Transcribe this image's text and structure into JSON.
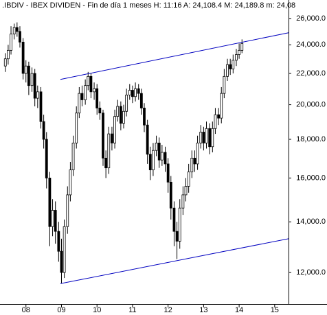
{
  "chart_data": {
    "type": "candlestick",
    "title": ".IBDIV - IBEX DIVIDEN - Fin de día 1 meses H: 11:16 A: 24,108.4 M: 24,189.8 m: 24,08",
    "log_scale": true,
    "grid": false,
    "color": "#000000",
    "x": [
      2007.42,
      2007.5,
      2007.58,
      2007.67,
      2007.75,
      2007.83,
      2007.92,
      2008.0,
      2008.08,
      2008.17,
      2008.25,
      2008.33,
      2008.42,
      2008.5,
      2008.58,
      2008.67,
      2008.75,
      2008.83,
      2008.92,
      2009.0,
      2009.08,
      2009.17,
      2009.25,
      2009.33,
      2009.42,
      2009.5,
      2009.58,
      2009.67,
      2009.75,
      2009.83,
      2009.92,
      2010.0,
      2010.08,
      2010.17,
      2010.25,
      2010.33,
      2010.42,
      2010.5,
      2010.58,
      2010.67,
      2010.75,
      2010.83,
      2010.92,
      2011.0,
      2011.08,
      2011.17,
      2011.25,
      2011.33,
      2011.42,
      2011.5,
      2011.58,
      2011.67,
      2011.75,
      2011.83,
      2011.92,
      2012.0,
      2012.08,
      2012.17,
      2012.25,
      2012.33,
      2012.42,
      2012.5,
      2012.58,
      2012.67,
      2012.75,
      2012.83,
      2012.92,
      2013.0,
      2013.08,
      2013.17,
      2013.25,
      2013.33,
      2013.42,
      2013.5,
      2013.58,
      2013.67,
      2013.75,
      2013.83,
      2013.92,
      2014.0,
      2014.08
    ],
    "open": [
      22500,
      23000,
      23600,
      24800,
      25300,
      25000,
      24200,
      22000,
      22500,
      21200,
      22000,
      20400,
      20800,
      19000,
      18000,
      16000,
      13800,
      14500,
      13600,
      12800,
      12000,
      13800,
      15200,
      16400,
      17800,
      19500,
      20700,
      20300,
      21200,
      21800,
      20800,
      21000,
      19800,
      19500,
      17000,
      16500,
      18300,
      17800,
      19300,
      19900,
      18900,
      19600,
      20600,
      20900,
      20500,
      21000,
      20700,
      19800,
      18800,
      17200,
      16400,
      17400,
      17800,
      16900,
      17300,
      16700,
      15800,
      14600,
      13600,
      13200,
      14600,
      15200,
      15600,
      16300,
      17000,
      16700,
      17800,
      18400,
      17800,
      18600,
      17600,
      18600,
      19400,
      19200,
      20700,
      21800,
      22600,
      22300,
      22900,
      23300,
      23600
    ],
    "high": [
      23400,
      24000,
      25400,
      25600,
      25700,
      25400,
      24500,
      22900,
      22800,
      22400,
      22300,
      21200,
      21100,
      19400,
      18400,
      16300,
      15000,
      14900,
      14000,
      13300,
      14100,
      15600,
      16800,
      18200,
      19900,
      21100,
      21200,
      21600,
      22100,
      22000,
      21400,
      21300,
      20200,
      19700,
      17400,
      18700,
      18700,
      19700,
      20300,
      20200,
      20000,
      21000,
      21300,
      21200,
      21400,
      21300,
      21000,
      20100,
      19100,
      17600,
      17800,
      18200,
      18100,
      17700,
      17600,
      17000,
      16100,
      14900,
      14000,
      15000,
      15600,
      16000,
      16700,
      17400,
      17400,
      18200,
      18800,
      18700,
      19000,
      18900,
      19000,
      19800,
      19800,
      21100,
      22300,
      23000,
      23000,
      23300,
      23700,
      24100,
      24400
    ],
    "low": [
      22100,
      22600,
      23300,
      24400,
      24600,
      23800,
      21600,
      21400,
      20600,
      20800,
      19900,
      19800,
      18600,
      17500,
      15500,
      13000,
      13400,
      13100,
      12400,
      11600,
      11800,
      13500,
      14900,
      16100,
      17500,
      19200,
      19900,
      20000,
      20900,
      20400,
      20300,
      19400,
      19100,
      16600,
      16000,
      16200,
      17400,
      17500,
      19000,
      18500,
      18600,
      19300,
      20300,
      20100,
      20200,
      20300,
      19400,
      18400,
      16700,
      15900,
      16100,
      17100,
      16500,
      16600,
      16300,
      15300,
      14100,
      13000,
      12500,
      12900,
      14300,
      14900,
      15300,
      16000,
      16300,
      16400,
      17500,
      17400,
      17500,
      17200,
      17300,
      18300,
      18800,
      18900,
      20400,
      21500,
      21900,
      22000,
      22500,
      23000,
      23400
    ],
    "close": [
      23000,
      23600,
      24800,
      25300,
      25000,
      24200,
      22000,
      22500,
      21200,
      22000,
      20400,
      20800,
      19000,
      18000,
      16000,
      13800,
      14500,
      13600,
      12800,
      12000,
      13800,
      15200,
      16400,
      17800,
      19500,
      20700,
      20300,
      21200,
      21800,
      20800,
      21000,
      19800,
      19500,
      17000,
      16500,
      18300,
      17800,
      19300,
      19900,
      18900,
      19600,
      20600,
      20900,
      20500,
      21000,
      20700,
      19800,
      18800,
      17200,
      16400,
      17400,
      17800,
      16900,
      17300,
      16700,
      15800,
      14600,
      13600,
      13200,
      14600,
      15200,
      15600,
      16300,
      17000,
      16700,
      17800,
      18400,
      17800,
      18600,
      17600,
      18600,
      19400,
      19200,
      20700,
      21800,
      22600,
      22300,
      22900,
      23300,
      23600,
      24100
    ],
    "trendlines": [
      {
        "color": "#0000c0",
        "x": [
          2008.97,
          2015.39
        ],
        "values": [
          21600,
          24900
        ]
      },
      {
        "color": "#0000c0",
        "x": [
          2008.97,
          2015.39
        ],
        "values": [
          11600,
          13300
        ]
      }
    ],
    "xlim": [
      2007.27,
      2015.39
    ],
    "xticks": [
      {
        "value": 2008,
        "label": "08"
      },
      {
        "value": 2009,
        "label": "09"
      },
      {
        "value": 2010,
        "label": "10"
      },
      {
        "value": 2011,
        "label": "11"
      },
      {
        "value": 2012,
        "label": "12"
      },
      {
        "value": 2013,
        "label": "13"
      },
      {
        "value": 2014,
        "label": "14"
      },
      {
        "value": 2015,
        "label": "15"
      }
    ],
    "ylim": [
      10970,
      27510
    ],
    "yticks": [
      {
        "value": 12000,
        "label": "12,000.0"
      },
      {
        "value": 14000,
        "label": "14,000.0"
      },
      {
        "value": 16000,
        "label": "16,000.0"
      },
      {
        "value": 18000,
        "label": "18,000.0"
      },
      {
        "value": 20000,
        "label": "20,000.0"
      },
      {
        "value": 22000,
        "label": "22,000.0"
      },
      {
        "value": 24000,
        "label": "24,000.0"
      },
      {
        "value": 26000,
        "label": "26,000.0"
      }
    ]
  }
}
